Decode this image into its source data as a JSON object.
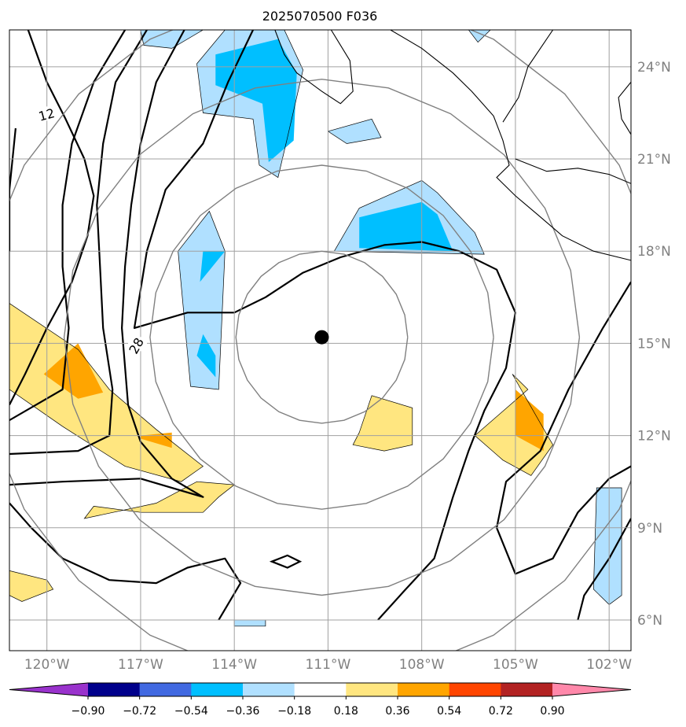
{
  "chart_data": {
    "type": "heatmap",
    "title": "2025070500 F036",
    "map": {
      "projection": "plate-carree",
      "lon_range": [
        -121.2,
        -101.3
      ],
      "lat_range": [
        5.0,
        25.2
      ],
      "grid": true,
      "lon_ticks": [
        {
          "value": -120,
          "label": "120°W"
        },
        {
          "value": -117,
          "label": "117°W"
        },
        {
          "value": -114,
          "label": "114°W"
        },
        {
          "value": -111,
          "label": "111°W"
        },
        {
          "value": -108,
          "label": "108°W"
        },
        {
          "value": -105,
          "label": "105°W"
        },
        {
          "value": -102,
          "label": "102°W"
        }
      ],
      "lat_ticks": [
        {
          "value": 6,
          "label": "6°N"
        },
        {
          "value": 9,
          "label": "9°N"
        },
        {
          "value": 12,
          "label": "12°N"
        },
        {
          "value": 15,
          "label": "15°N"
        },
        {
          "value": 18,
          "label": "18°N"
        },
        {
          "value": 21,
          "label": "21°N"
        },
        {
          "value": 24,
          "label": "24°N"
        }
      ],
      "lat_tick_side": "right",
      "storm_center": {
        "lon": -111.2,
        "lat": 15.2
      },
      "range_rings_deg": [
        2.75,
        5.5,
        8.25,
        11.0
      ],
      "contour_labels": [
        {
          "text": "12",
          "lon": -120.0,
          "lat": 22.4,
          "rotation": -15
        },
        {
          "text": "28",
          "lon": -117.1,
          "lat": 14.9,
          "rotation": -60
        }
      ]
    },
    "colorbar": {
      "orientation": "horizontal",
      "extend": "both",
      "levels": [
        -0.9,
        -0.72,
        -0.54,
        -0.36,
        -0.18,
        0.18,
        0.36,
        0.54,
        0.72,
        0.9
      ],
      "labels": [
        "−0.90",
        "−0.72",
        "−0.54",
        "−0.36",
        "−0.18",
        "0.18",
        "0.36",
        "0.54",
        "0.72",
        "0.90"
      ],
      "colors": [
        "#9932cc",
        "#00008b",
        "#4169e1",
        "#00bfff",
        "#b0e0ff",
        "#ffffff",
        "#ffe680",
        "#ffa500",
        "#ff4500",
        "#b22222",
        "#ff88aa"
      ]
    },
    "shaded_regions": [
      {
        "level": "#b0e0ff",
        "points": [
          [
            -112.3,
            21.7
          ],
          [
            -111.8,
            23.9
          ],
          [
            -112.4,
            25.2
          ],
          [
            -114.3,
            25.2
          ],
          [
            -115.2,
            24.1
          ],
          [
            -115.0,
            22.5
          ],
          [
            -113.4,
            22.3
          ],
          [
            -113.2,
            20.8
          ],
          [
            -112.6,
            20.4
          ]
        ]
      },
      {
        "level": "#00bfff",
        "points": [
          [
            -112.1,
            21.6
          ],
          [
            -112.0,
            23.8
          ],
          [
            -112.6,
            24.9
          ],
          [
            -114.6,
            24.4
          ],
          [
            -114.6,
            23.4
          ],
          [
            -113.1,
            22.8
          ],
          [
            -112.9,
            20.9
          ]
        ]
      },
      {
        "level": "#b0e0ff",
        "points": [
          [
            -111.0,
            21.9
          ],
          [
            -109.6,
            22.3
          ],
          [
            -109.3,
            21.7
          ],
          [
            -110.4,
            21.5
          ]
        ]
      },
      {
        "level": "#b0e0ff",
        "points": [
          [
            -110.8,
            18.0
          ],
          [
            -106.0,
            17.9
          ],
          [
            -106.3,
            18.6
          ],
          [
            -107.5,
            19.9
          ],
          [
            -108.0,
            20.3
          ],
          [
            -110.0,
            19.4
          ]
        ]
      },
      {
        "level": "#00bfff",
        "points": [
          [
            -110.0,
            18.1
          ],
          [
            -107.0,
            18.0
          ],
          [
            -107.5,
            19.2
          ],
          [
            -108.0,
            19.6
          ],
          [
            -110.0,
            19.1
          ]
        ]
      },
      {
        "level": "#b0e0ff",
        "points": [
          [
            -115.4,
            13.6
          ],
          [
            -114.5,
            13.5
          ],
          [
            -114.3,
            18.0
          ],
          [
            -114.8,
            19.3
          ],
          [
            -115.8,
            18.0
          ]
        ]
      },
      {
        "level": "#00bfff",
        "points": [
          [
            -115.2,
            14.6
          ],
          [
            -114.6,
            13.9
          ],
          [
            -114.6,
            14.6
          ],
          [
            -115.0,
            15.3
          ]
        ]
      },
      {
        "level": "#00bfff",
        "points": [
          [
            -115.1,
            17.0
          ],
          [
            -114.3,
            18.0
          ],
          [
            -115.0,
            18.0
          ]
        ]
      },
      {
        "level": "#ffe680",
        "points": [
          [
            -121.2,
            16.3
          ],
          [
            -119.0,
            14.8
          ],
          [
            -118.0,
            13.5
          ],
          [
            -116.5,
            12.2
          ],
          [
            -115.0,
            11.0
          ],
          [
            -115.7,
            10.5
          ],
          [
            -117.5,
            11.0
          ],
          [
            -119.5,
            12.3
          ],
          [
            -121.2,
            13.5
          ]
        ]
      },
      {
        "level": "#ffa500",
        "points": [
          [
            -120.1,
            14.0
          ],
          [
            -119.0,
            15.0
          ],
          [
            -118.2,
            13.4
          ],
          [
            -119.0,
            13.2
          ]
        ]
      },
      {
        "level": "#ffa500",
        "points": [
          [
            -117.0,
            12.0
          ],
          [
            -116.0,
            12.1
          ],
          [
            -116.0,
            11.6
          ],
          [
            -117.0,
            11.9
          ]
        ]
      },
      {
        "level": "#ffe680",
        "points": [
          [
            -110.0,
            12.1
          ],
          [
            -109.6,
            13.3
          ],
          [
            -108.3,
            12.9
          ],
          [
            -108.3,
            11.7
          ],
          [
            -109.2,
            11.5
          ],
          [
            -110.2,
            11.7
          ]
        ]
      },
      {
        "level": "#ffe680",
        "points": [
          [
            -104.6,
            13.5
          ],
          [
            -105.1,
            14.0
          ],
          [
            -104.2,
            12.4
          ],
          [
            -103.8,
            11.7
          ],
          [
            -104.5,
            10.7
          ],
          [
            -105.4,
            11.2
          ],
          [
            -106.3,
            12.0
          ]
        ]
      },
      {
        "level": "#ffa500",
        "points": [
          [
            -105.0,
            12.0
          ],
          [
            -105.0,
            13.5
          ],
          [
            -104.1,
            12.7
          ],
          [
            -104.1,
            11.5
          ]
        ]
      },
      {
        "level": "#ffe680",
        "points": [
          [
            -118.5,
            9.7
          ],
          [
            -117.0,
            9.5
          ],
          [
            -115.0,
            9.5
          ],
          [
            -114.5,
            10.0
          ],
          [
            -114.0,
            10.4
          ],
          [
            -115.2,
            10.5
          ],
          [
            -116.5,
            9.8
          ],
          [
            -118.8,
            9.3
          ]
        ]
      },
      {
        "level": "#ffe680",
        "points": [
          [
            -121.2,
            7.6
          ],
          [
            -120.0,
            7.3
          ],
          [
            -119.8,
            7.0
          ],
          [
            -120.8,
            6.6
          ],
          [
            -121.2,
            6.8
          ]
        ]
      },
      {
        "level": "#b0e0ff",
        "points": [
          [
            -102.4,
            10.3
          ],
          [
            -101.6,
            10.3
          ],
          [
            -101.6,
            6.8
          ],
          [
            -102.0,
            6.5
          ],
          [
            -102.5,
            7.0
          ]
        ]
      },
      {
        "level": "#b0e0ff",
        "points": [
          [
            -114.0,
            6.0
          ],
          [
            -113.0,
            6.0
          ],
          [
            -113.0,
            5.8
          ],
          [
            -114.0,
            5.8
          ]
        ]
      },
      {
        "level": "#b0e0ff",
        "points": [
          [
            -117.0,
            25.2
          ],
          [
            -115.0,
            25.2
          ],
          [
            -116.0,
            24.6
          ],
          [
            -116.9,
            24.7
          ]
        ]
      },
      {
        "level": "#b0e0ff",
        "points": [
          [
            -106.5,
            25.2
          ],
          [
            -105.8,
            25.2
          ],
          [
            -106.2,
            24.8
          ]
        ]
      }
    ]
  }
}
